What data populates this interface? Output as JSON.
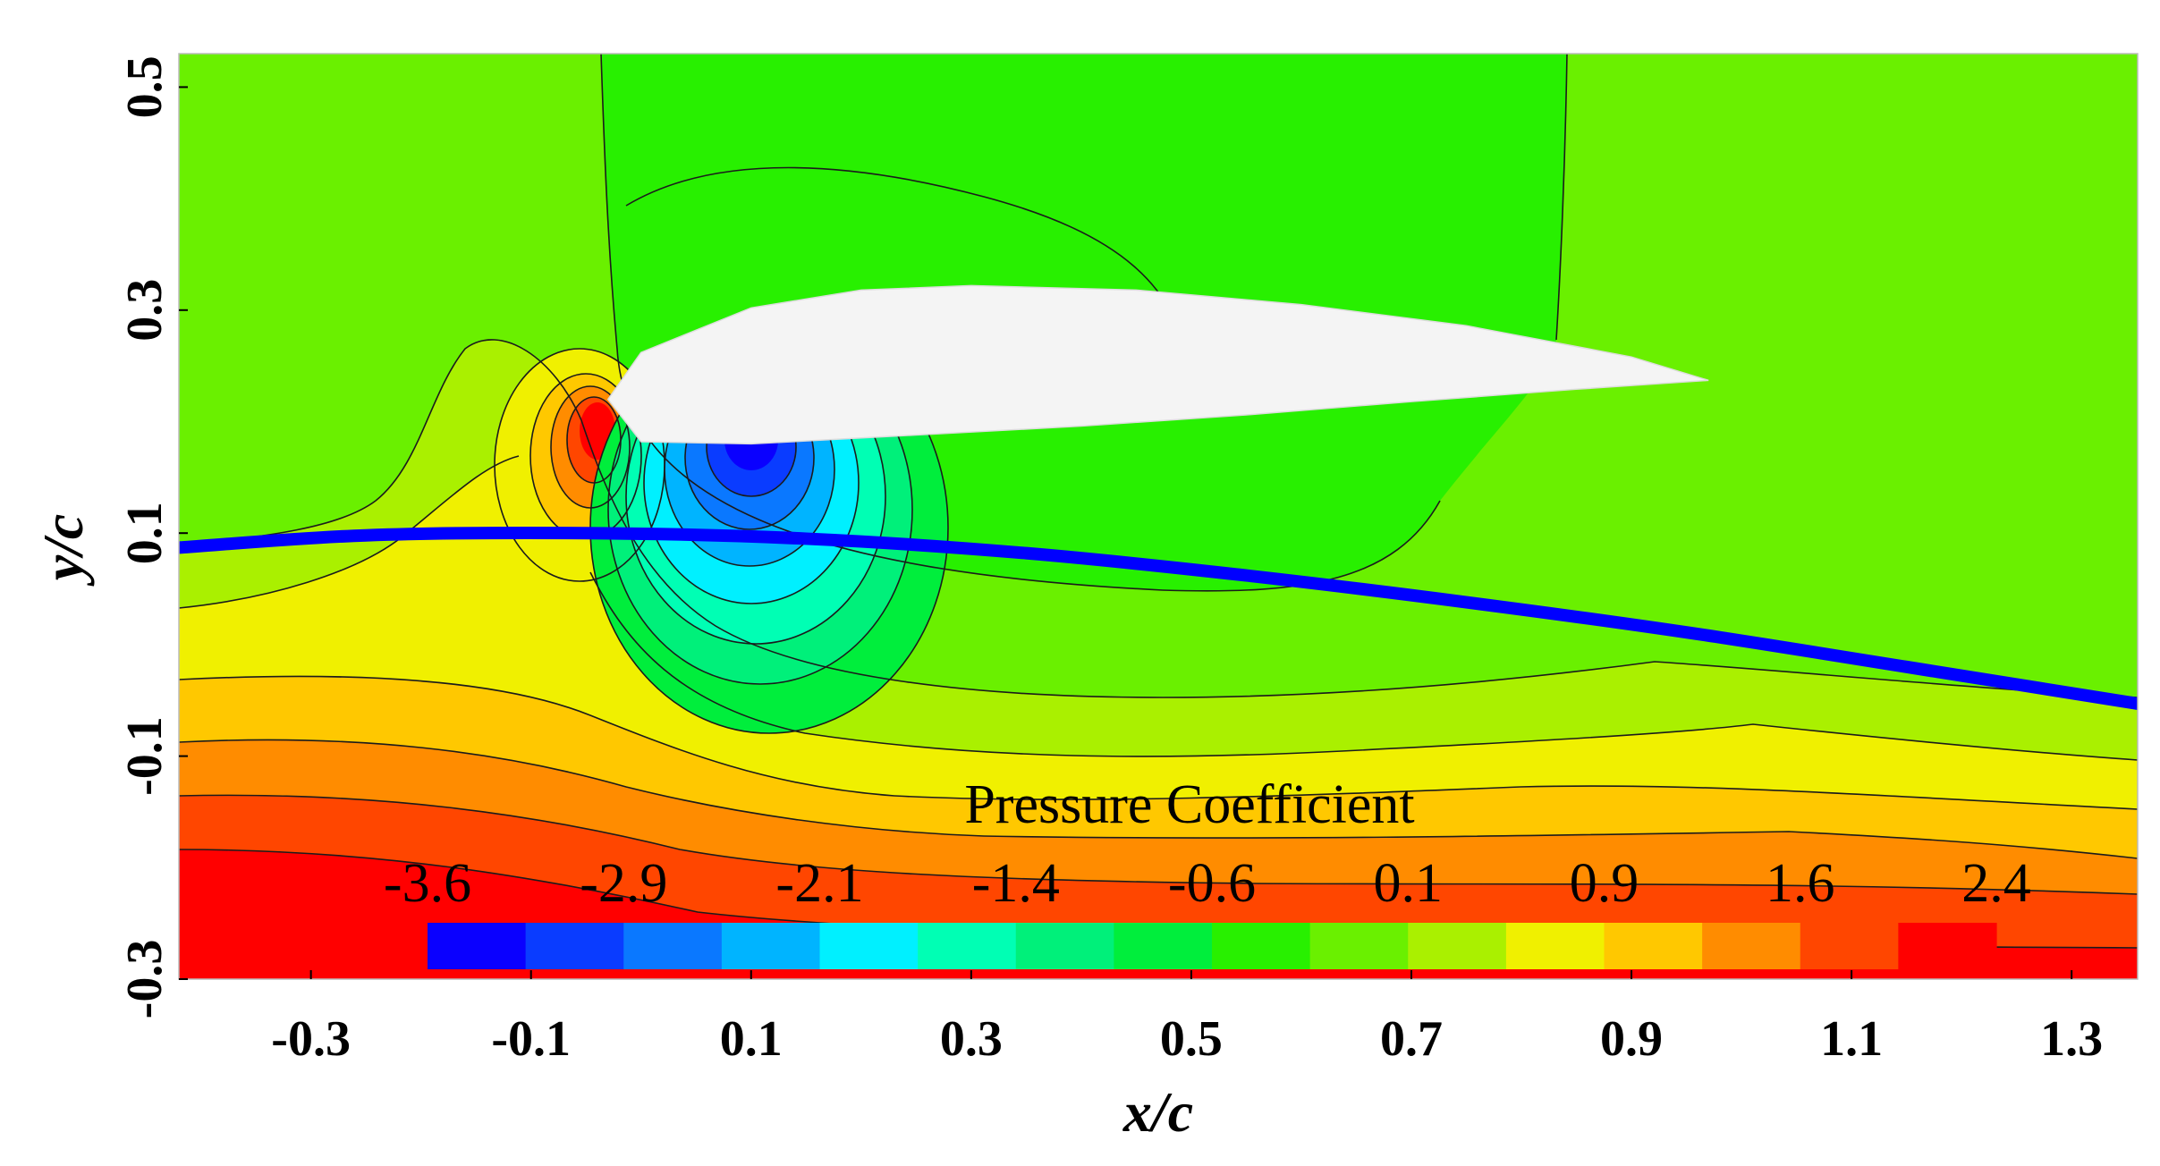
{
  "chart_data": {
    "type": "heatmap",
    "title": "",
    "xlabel": "x/c",
    "ylabel": "y/c",
    "xlim": [
      -0.42,
      1.36
    ],
    "ylim": [
      -0.3,
      0.53
    ],
    "x_ticks": [
      "-0.3",
      "-0.1",
      "0.1",
      "0.3",
      "0.5",
      "0.7",
      "0.9",
      "1.1",
      "1.3"
    ],
    "y_ticks": [
      "0.5",
      "0.3",
      "0.1",
      "-0.1",
      "-0.3"
    ],
    "colorbar": {
      "title": "Pressure Coefficient",
      "tick_labels": [
        "-3.6",
        "-2.9",
        "-2.1",
        "-1.4",
        "-0.6",
        "0.1",
        "0.9",
        "1.6",
        "2.4"
      ],
      "levels": [
        -3.6,
        -3.2,
        -2.9,
        -2.5,
        -2.1,
        -1.8,
        -1.4,
        -1.0,
        -0.6,
        -0.25,
        0.1,
        0.5,
        0.9,
        1.25,
        1.6,
        2.0,
        2.4
      ],
      "colors": [
        "#0a00ff",
        "#0a3cff",
        "#0a78ff",
        "#00b4ff",
        "#00f0ff",
        "#00ffb4",
        "#00f07a",
        "#00ee3c",
        "#28f000",
        "#6af000",
        "#aaf000",
        "#f0f000",
        "#ffc800",
        "#ff8c00",
        "#ff4600",
        "#ff0000"
      ]
    },
    "airfoil": {
      "leading_edge": [
        -0.03,
        0.22
      ],
      "trailing_edge": [
        0.97,
        0.237
      ],
      "upper_surface": [
        [
          -0.03,
          0.22
        ],
        [
          0.0,
          0.262
        ],
        [
          0.1,
          0.302
        ],
        [
          0.2,
          0.318
        ],
        [
          0.3,
          0.322
        ],
        [
          0.45,
          0.318
        ],
        [
          0.6,
          0.305
        ],
        [
          0.75,
          0.286
        ],
        [
          0.9,
          0.258
        ],
        [
          0.97,
          0.237
        ]
      ],
      "lower_surface": [
        [
          0.97,
          0.237
        ],
        [
          0.85,
          0.229
        ],
        [
          0.7,
          0.218
        ],
        [
          0.55,
          0.206
        ],
        [
          0.4,
          0.196
        ],
        [
          0.25,
          0.188
        ],
        [
          0.1,
          0.18
        ],
        [
          0.0,
          0.182
        ],
        [
          -0.03,
          0.22
        ]
      ]
    },
    "blue_curve": {
      "color": "#0000ff",
      "points": [
        [
          -0.42,
          0.087
        ],
        [
          -0.25,
          0.098
        ],
        [
          -0.05,
          0.1
        ],
        [
          0.15,
          0.095
        ],
        [
          0.35,
          0.082
        ],
        [
          0.55,
          0.062
        ],
        [
          0.75,
          0.038
        ],
        [
          0.95,
          0.011
        ],
        [
          1.15,
          -0.02
        ],
        [
          1.36,
          -0.053
        ]
      ]
    }
  }
}
